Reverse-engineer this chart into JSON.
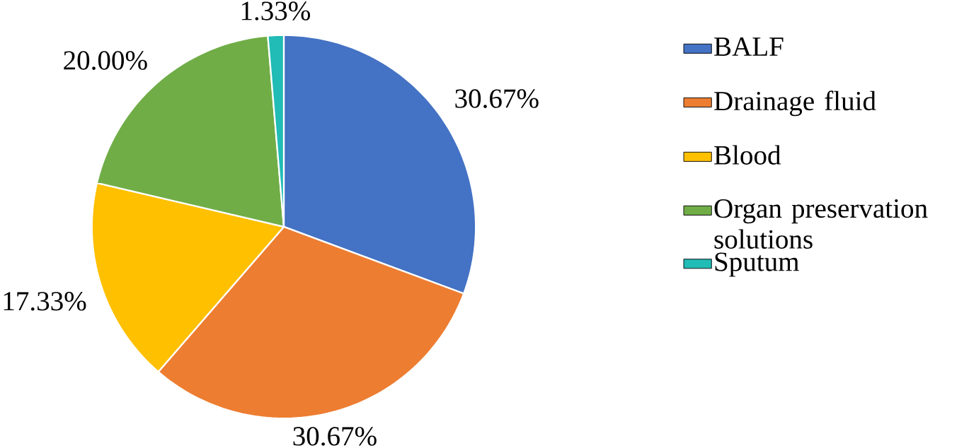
{
  "chart_data": {
    "type": "pie",
    "categories": [
      "BALF",
      "Drainage fluid",
      "Blood",
      "Organ preservation solutions",
      "Sputum"
    ],
    "values": [
      30.67,
      30.67,
      17.33,
      20.0,
      1.33
    ],
    "colors": [
      "#4472c4",
      "#ed7d31",
      "#ffc000",
      "#70ad47",
      "#21bcb5"
    ],
    "value_labels": [
      "30.67%",
      "30.67%",
      "17.33%",
      "20.00%",
      "1.33%"
    ],
    "legend": "right"
  }
}
